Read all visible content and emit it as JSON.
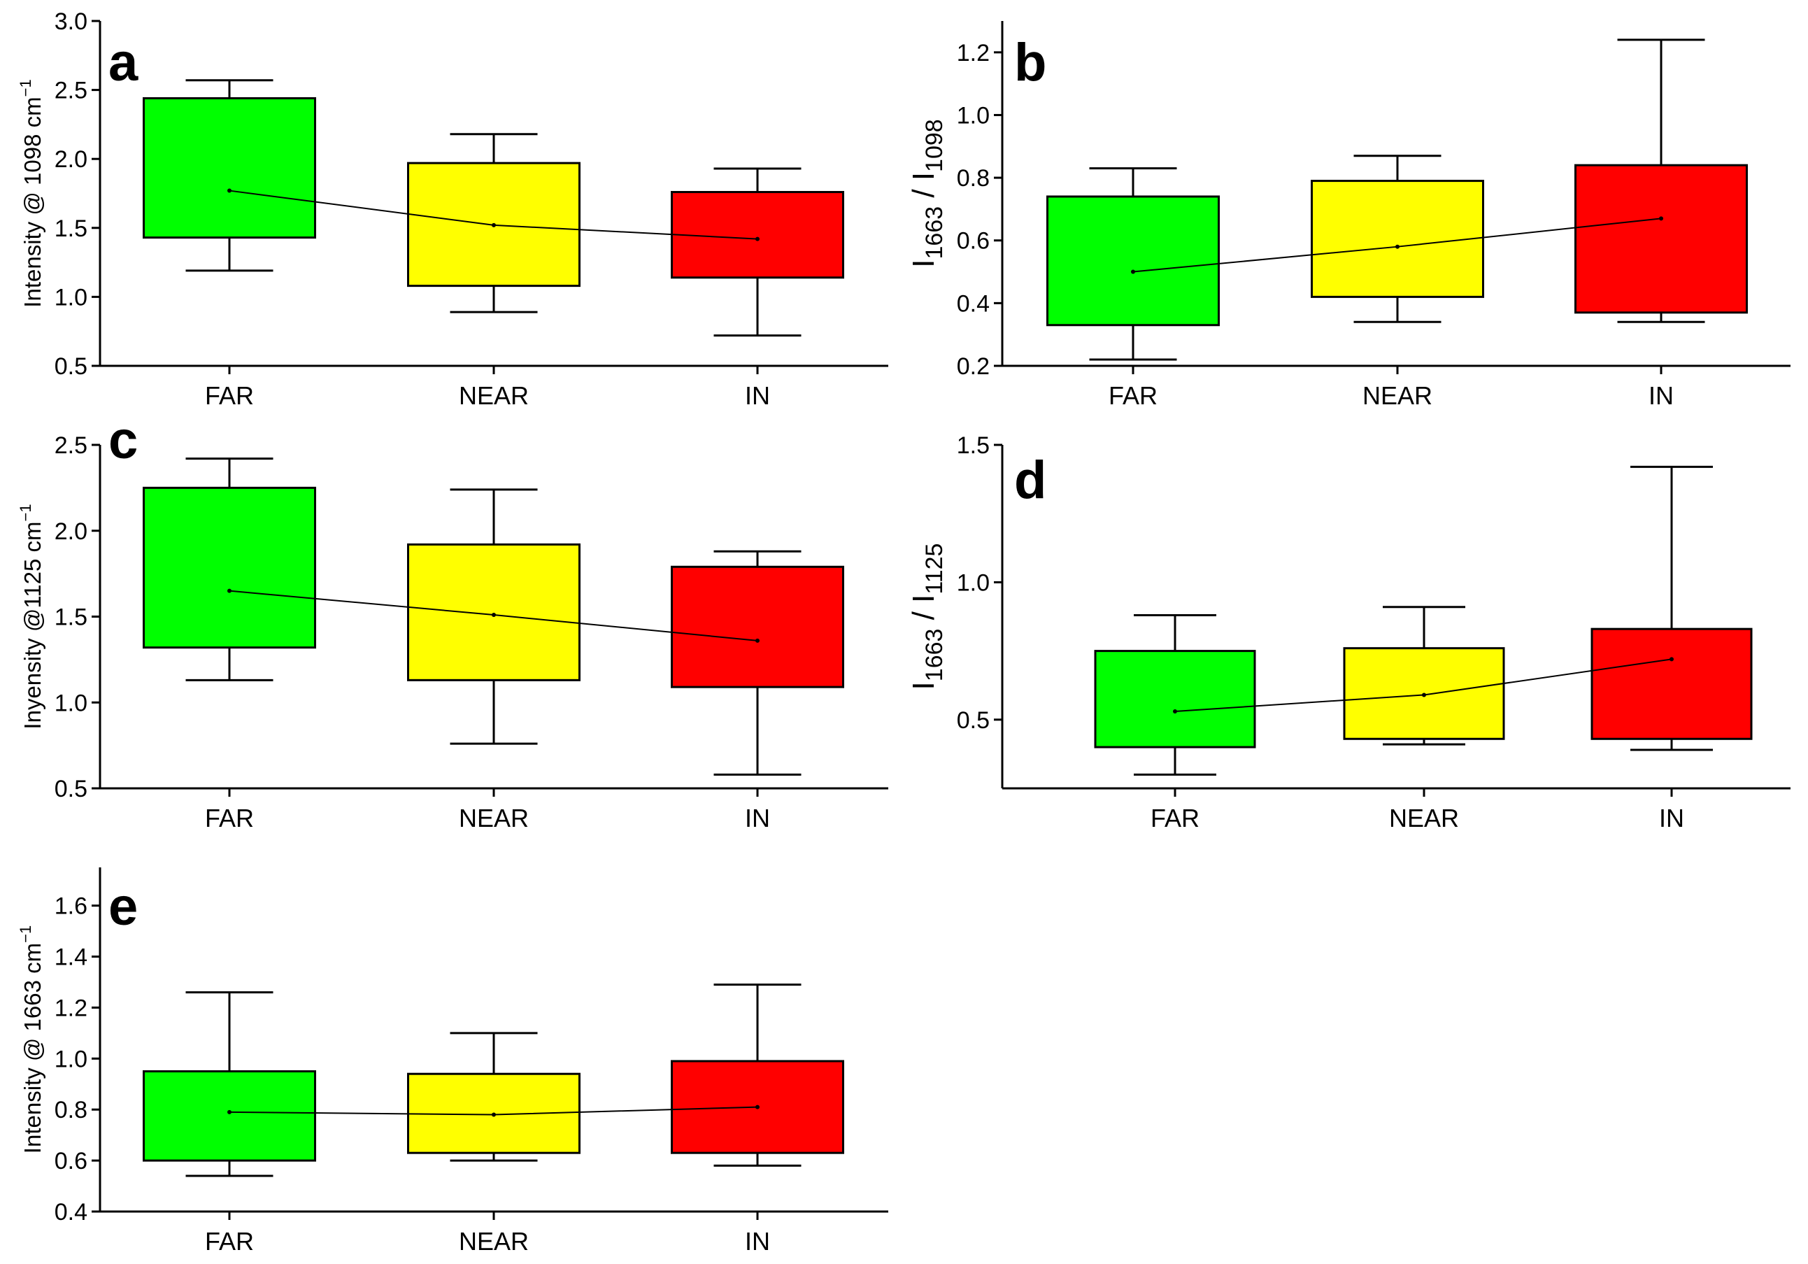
{
  "figure": {
    "categories": [
      "FAR",
      "NEAR",
      "IN"
    ],
    "colors": {
      "FAR": "#00ff00",
      "NEAR": "#ffff00",
      "IN": "#ff0000",
      "axis": "#000000"
    }
  },
  "chart_data": [
    {
      "panel": "a",
      "type": "box",
      "ylabel": "Intensity @ 1098 cm",
      "ylabel_superscript": "−1",
      "ylim": [
        0.5,
        3.0
      ],
      "yticks": [
        "0.5",
        "1.0",
        "1.5",
        "2.0",
        "2.5",
        "3.0"
      ],
      "categories": [
        "FAR",
        "NEAR",
        "IN"
      ],
      "boxes": [
        {
          "category": "FAR",
          "whisker_low": 1.19,
          "q1": 1.43,
          "mean": 1.77,
          "q3": 2.44,
          "whisker_high": 2.57
        },
        {
          "category": "NEAR",
          "whisker_low": 0.89,
          "q1": 1.08,
          "mean": 1.52,
          "q3": 1.97,
          "whisker_high": 2.18
        },
        {
          "category": "IN",
          "whisker_low": 0.72,
          "q1": 1.14,
          "mean": 1.42,
          "q3": 1.76,
          "whisker_high": 1.93
        }
      ]
    },
    {
      "panel": "b",
      "type": "box",
      "ylabel_parts": [
        "I",
        "1663",
        " / I",
        "1098"
      ],
      "ylim": [
        0.2,
        1.3
      ],
      "yticks": [
        "0.2",
        "0.4",
        "0.6",
        "0.8",
        "1.0",
        "1.2"
      ],
      "categories": [
        "FAR",
        "NEAR",
        "IN"
      ],
      "boxes": [
        {
          "category": "FAR",
          "whisker_low": 0.22,
          "q1": 0.33,
          "mean": 0.5,
          "q3": 0.74,
          "whisker_high": 0.83
        },
        {
          "category": "NEAR",
          "whisker_low": 0.34,
          "q1": 0.42,
          "mean": 0.58,
          "q3": 0.79,
          "whisker_high": 0.87
        },
        {
          "category": "IN",
          "whisker_low": 0.34,
          "q1": 0.37,
          "mean": 0.67,
          "q3": 0.84,
          "whisker_high": 1.24
        }
      ]
    },
    {
      "panel": "c",
      "type": "box",
      "ylabel": "Inyensity @1125 cm",
      "ylabel_superscript": "−1",
      "ylim": [
        0.5,
        2.5
      ],
      "yticks": [
        "0.5",
        "1.0",
        "1.5",
        "2.0",
        "2.5"
      ],
      "categories": [
        "FAR",
        "NEAR",
        "IN"
      ],
      "boxes": [
        {
          "category": "FAR",
          "whisker_low": 1.13,
          "q1": 1.32,
          "mean": 1.65,
          "q3": 2.25,
          "whisker_high": 2.42
        },
        {
          "category": "NEAR",
          "whisker_low": 0.76,
          "q1": 1.13,
          "mean": 1.51,
          "q3": 1.92,
          "whisker_high": 2.24
        },
        {
          "category": "IN",
          "whisker_low": 0.58,
          "q1": 1.09,
          "mean": 1.36,
          "q3": 1.79,
          "whisker_high": 1.88
        }
      ]
    },
    {
      "panel": "d",
      "type": "box",
      "ylabel_parts": [
        "I",
        "1663",
        " / I",
        "1125"
      ],
      "ylim": [
        0.25,
        1.5
      ],
      "yticks": [
        "0.5",
        "1.0",
        "1.5"
      ],
      "categories": [
        "FAR",
        "NEAR",
        "IN"
      ],
      "boxes": [
        {
          "category": "FAR",
          "whisker_low": 0.3,
          "q1": 0.4,
          "mean": 0.53,
          "q3": 0.75,
          "whisker_high": 0.88
        },
        {
          "category": "NEAR",
          "whisker_low": 0.41,
          "q1": 0.43,
          "mean": 0.59,
          "q3": 0.76,
          "whisker_high": 0.91
        },
        {
          "category": "IN",
          "whisker_low": 0.39,
          "q1": 0.43,
          "mean": 0.72,
          "q3": 0.83,
          "whisker_high": 1.42
        }
      ]
    },
    {
      "panel": "e",
      "type": "box",
      "ylabel": "Intensity @ 1663 cm",
      "ylabel_superscript": "−1",
      "ylim": [
        0.4,
        1.75
      ],
      "yticks": [
        "0.4",
        "0.6",
        "0.8",
        "1.0",
        "1.2",
        "1.4",
        "1.6"
      ],
      "categories": [
        "FAR",
        "NEAR",
        "IN"
      ],
      "boxes": [
        {
          "category": "FAR",
          "whisker_low": 0.54,
          "q1": 0.6,
          "mean": 0.79,
          "q3": 0.95,
          "whisker_high": 1.26
        },
        {
          "category": "NEAR",
          "whisker_low": 0.6,
          "q1": 0.63,
          "mean": 0.78,
          "q3": 0.94,
          "whisker_high": 1.1
        },
        {
          "category": "IN",
          "whisker_low": 0.58,
          "q1": 0.63,
          "mean": 0.81,
          "q3": 0.99,
          "whisker_high": 1.29
        }
      ]
    }
  ]
}
